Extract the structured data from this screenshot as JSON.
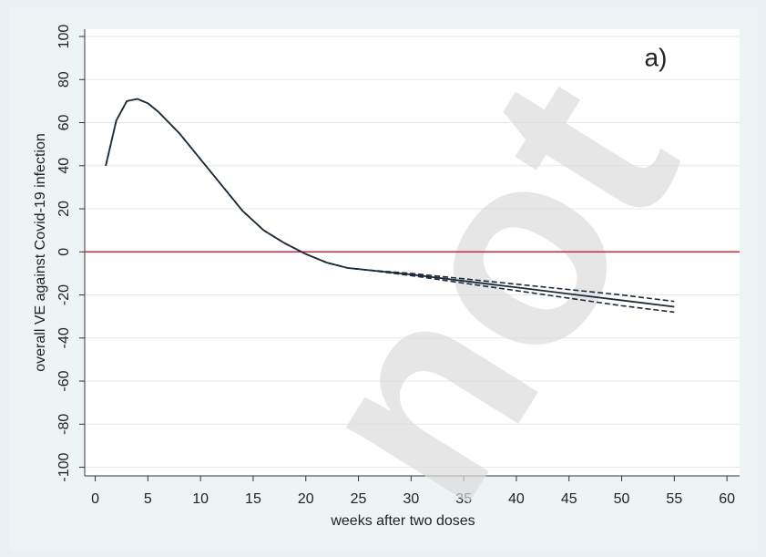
{
  "chart_data": {
    "type": "line",
    "annotation": "a)",
    "watermark": "not",
    "x_label": "weeks after two doses",
    "y_label": "overall VE against Covid-19 infection",
    "x": [
      1,
      2,
      3,
      4,
      5,
      6,
      8,
      10,
      12,
      14,
      16,
      18,
      20,
      22,
      24,
      26,
      30,
      35,
      40,
      45,
      50,
      55
    ],
    "series": [
      {
        "color": "#1c2b3a",
        "style": "solid",
        "values": [
          40,
          61,
          70,
          71,
          69,
          65,
          55,
          43,
          31,
          19,
          10,
          4,
          -1,
          -5,
          -7.5,
          -8.5,
          -10.5,
          -13.5,
          -16.5,
          -19.5,
          -22.5,
          -25.5
        ]
      },
      {
        "color": "#1c2b3a",
        "style": "dashed",
        "values": [
          40,
          61,
          70,
          71,
          69,
          65,
          55,
          43,
          31,
          19,
          10,
          4,
          -1,
          -5,
          -7.5,
          -8.5,
          -10,
          -12.5,
          -15,
          -17.5,
          -20,
          -23
        ]
      },
      {
        "color": "#1c2b3a",
        "style": "dashed",
        "values": [
          40,
          61,
          70,
          71,
          69,
          65,
          55,
          43,
          31,
          19,
          10,
          4,
          -1,
          -5,
          -7.5,
          -8.5,
          -11,
          -14.5,
          -18,
          -21.5,
          -25,
          -28
        ]
      }
    ],
    "hline": {
      "value": 0,
      "color": "#d0253d"
    },
    "xlim": [
      -1,
      61.2
    ],
    "ylim": [
      -104,
      103.4
    ],
    "xticks": [
      0,
      5,
      10,
      15,
      20,
      25,
      30,
      35,
      40,
      45,
      50,
      55,
      60
    ],
    "yticks": [
      -100,
      -80,
      -60,
      -40,
      -20,
      0,
      20,
      40,
      60,
      80,
      100
    ],
    "grid": true
  }
}
